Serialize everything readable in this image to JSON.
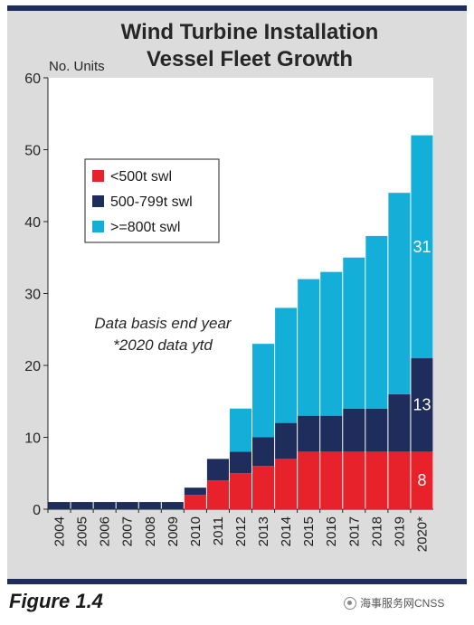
{
  "chart_data": {
    "type": "bar",
    "stacked": true,
    "title": [
      "Wind Turbine Installation",
      "Vessel Fleet Growth"
    ],
    "ylabel": "No. Units",
    "ylim": [
      0,
      60
    ],
    "yticks": [
      0,
      10,
      20,
      30,
      40,
      50,
      60
    ],
    "categories": [
      "2004",
      "2005",
      "2006",
      "2007",
      "2008",
      "2009",
      "2010",
      "2011",
      "2012",
      "2013",
      "2014",
      "2015",
      "2016",
      "2017",
      "2018",
      "2019",
      "2020*"
    ],
    "series": [
      {
        "name": "<500t swl",
        "color": "#e8222a",
        "values": [
          0,
          0,
          0,
          0,
          0,
          0,
          2,
          4,
          5,
          6,
          7,
          8,
          8,
          8,
          8,
          8,
          8
        ]
      },
      {
        "name": "500-799t swl",
        "color": "#1f2d5c",
        "values": [
          1,
          1,
          1,
          1,
          1,
          1,
          1,
          3,
          3,
          4,
          5,
          5,
          5,
          6,
          6,
          8,
          13
        ]
      },
      {
        "name": ">=800t swl",
        "color": "#14afd8",
        "values": [
          0,
          0,
          0,
          0,
          0,
          0,
          0,
          0,
          6,
          13,
          16,
          19,
          20,
          21,
          24,
          28,
          31
        ]
      }
    ],
    "data_labels": [
      {
        "category": "2020*",
        "series": "<500t swl",
        "text": "8"
      },
      {
        "category": "2020*",
        "series": "500-799t swl",
        "text": "13"
      },
      {
        "category": "2020*",
        "series": ">=800t swl",
        "text": "31"
      }
    ],
    "annotations": [
      "Data basis end year",
      "*2020 data ytd"
    ],
    "legend_position": "upper-left",
    "grid": false
  },
  "figure_label": "Figure 1.4",
  "source_text": "海事服务网CNSS",
  "colors": {
    "frame": "#1f2d5c",
    "panel": "#dcdcdc"
  }
}
